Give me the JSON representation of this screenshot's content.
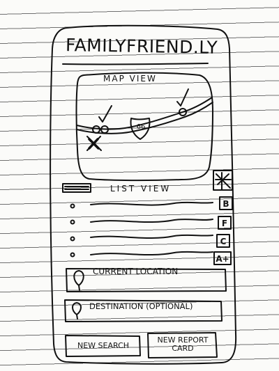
{
  "app": {
    "title": "FamilyFriend.ly"
  },
  "map": {
    "label": "Map View",
    "highway_shield": "66",
    "accent_colors": {
      "ink": "#111111",
      "paper_line": "#6f6f6f"
    }
  },
  "list": {
    "label": "List View",
    "items": [
      {
        "grade": "B"
      },
      {
        "grade": "F"
      },
      {
        "grade": "C"
      },
      {
        "grade": "A+"
      }
    ]
  },
  "fields": {
    "current_location": {
      "label": "Current Location"
    },
    "destination": {
      "label": "Destination (optional)"
    }
  },
  "buttons": {
    "new_search": "New Search",
    "new_report_card": "New Report Card"
  }
}
